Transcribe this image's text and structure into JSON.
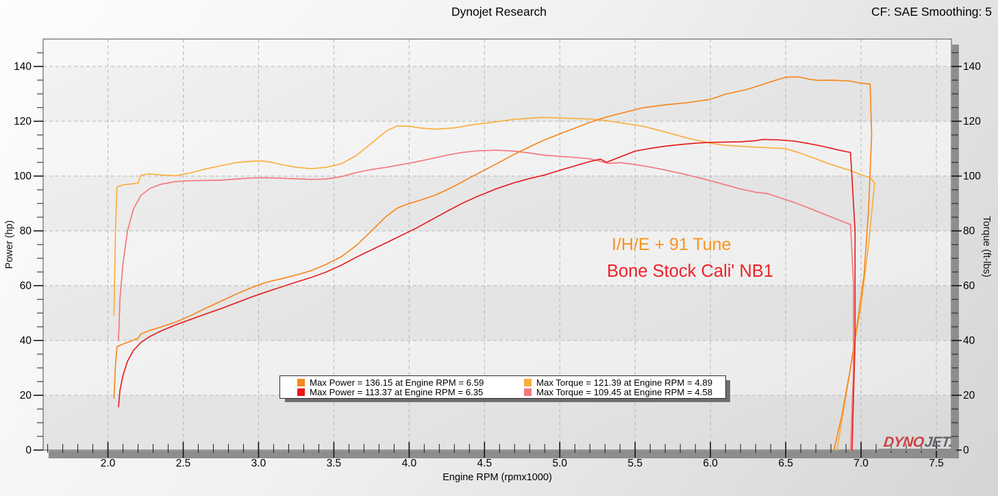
{
  "header": {
    "title": "Dynojet Research",
    "cf_label": "CF: SAE Smoothing: 5"
  },
  "legend": {
    "entries": [
      {
        "label": "Max Power = 136.15 at Engine RPM = 6.59",
        "color": "#F6891F"
      },
      {
        "label": "Max Power = 113.37 at Engine RPM = 6.35",
        "color": "#ED1414"
      },
      {
        "label": "Max Torque = 121.39 at Engine RPM = 4.89",
        "color": "#FBAE3C"
      },
      {
        "label": "Max Torque = 109.45 at Engine RPM = 4.58",
        "color": "#F4787D"
      }
    ]
  },
  "annotations": [
    {
      "text": "I/H/E + 91 Tune",
      "color": "#F7941E"
    },
    {
      "text": "Bone Stock Cali' NB1",
      "color": "#EE2228"
    }
  ],
  "logo": {
    "part1": "DYNO",
    "part2": "JET.",
    "color1": "#CE4046",
    "color2": "#63636B"
  },
  "chart_data": {
    "type": "line",
    "title": "Dynojet Research",
    "xlabel": "Engine RPM (rpmx1000)",
    "ylabel_left": "Power (hp)",
    "ylabel_right": "Torque (ft-lbs)",
    "x_range": [
      1.57,
      7.6
    ],
    "y_range": [
      0,
      150
    ],
    "x_ticks": [
      "2.0",
      "2.5",
      "3.0",
      "3.5",
      "4.0",
      "4.5",
      "5.0",
      "5.5",
      "6.0",
      "6.5",
      "7.0",
      "7.5"
    ],
    "y_ticks": [
      0,
      20,
      40,
      60,
      80,
      100,
      120,
      140
    ],
    "x_minor_step": 0.1,
    "y_minor_step": 5,
    "grid": "dashed",
    "legend_position": "bottom-center",
    "series": [
      {
        "name": "I/H/E + 91 Tune - Torque",
        "axis": "right",
        "unit": "ft-lbs",
        "color": "#FBAE3C",
        "max": {
          "value": 121.39,
          "rpm": 4.89
        },
        "points": [
          [
            2.04,
            49
          ],
          [
            2.05,
            80
          ],
          [
            2.06,
            96
          ],
          [
            2.1,
            96.8
          ],
          [
            2.15,
            97.1
          ],
          [
            2.2,
            97.4
          ],
          [
            2.22,
            100.3
          ],
          [
            2.28,
            100.8
          ],
          [
            2.35,
            100.4
          ],
          [
            2.45,
            100.1
          ],
          [
            2.55,
            101.2
          ],
          [
            2.65,
            102.6
          ],
          [
            2.75,
            103.8
          ],
          [
            2.85,
            104.9
          ],
          [
            2.95,
            105.4
          ],
          [
            3.02,
            105.5
          ],
          [
            3.08,
            105.1
          ],
          [
            3.15,
            104.2
          ],
          [
            3.25,
            103.2
          ],
          [
            3.35,
            102.7
          ],
          [
            3.45,
            103.2
          ],
          [
            3.55,
            104.5
          ],
          [
            3.65,
            107.5
          ],
          [
            3.75,
            112
          ],
          [
            3.85,
            116.5
          ],
          [
            3.92,
            118.3
          ],
          [
            4,
            118.2
          ],
          [
            4.08,
            117.5
          ],
          [
            4.18,
            117.1
          ],
          [
            4.3,
            117.6
          ],
          [
            4.42,
            118.7
          ],
          [
            4.55,
            119.6
          ],
          [
            4.7,
            120.7
          ],
          [
            4.8,
            121.1
          ],
          [
            4.89,
            121.39
          ],
          [
            5,
            121.2
          ],
          [
            5.1,
            121
          ],
          [
            5.2,
            120.8
          ],
          [
            5.3,
            120.3
          ],
          [
            5.42,
            119.3
          ],
          [
            5.55,
            118.2
          ],
          [
            5.7,
            116.1
          ],
          [
            5.85,
            113.8
          ],
          [
            6,
            112
          ],
          [
            6.1,
            111.2
          ],
          [
            6.25,
            110.7
          ],
          [
            6.4,
            110.3
          ],
          [
            6.5,
            110
          ],
          [
            6.59,
            108.5
          ],
          [
            6.7,
            106.3
          ],
          [
            6.78,
            104.6
          ],
          [
            6.85,
            103.4
          ],
          [
            6.92,
            102.2
          ],
          [
            7,
            100.5
          ],
          [
            7.06,
            99.4
          ],
          [
            7.09,
            97.5
          ],
          [
            7.05,
            75
          ],
          [
            7,
            53
          ],
          [
            6.96,
            40
          ],
          [
            6.9,
            20
          ],
          [
            6.84,
            0
          ]
        ]
      },
      {
        "name": "Bone Stock Cali' NB1 - Torque",
        "axis": "right",
        "unit": "ft-lbs",
        "color": "#F4787D",
        "max": {
          "value": 109.45,
          "rpm": 4.58
        },
        "points": [
          [
            2.07,
            40
          ],
          [
            2.08,
            55
          ],
          [
            2.1,
            68
          ],
          [
            2.13,
            80
          ],
          [
            2.17,
            88
          ],
          [
            2.22,
            93
          ],
          [
            2.28,
            95.5
          ],
          [
            2.35,
            97
          ],
          [
            2.45,
            98
          ],
          [
            2.55,
            98.3
          ],
          [
            2.65,
            98.4
          ],
          [
            2.75,
            98.5
          ],
          [
            2.85,
            98.9
          ],
          [
            2.95,
            99.3
          ],
          [
            3.05,
            99.4
          ],
          [
            3.15,
            99.2
          ],
          [
            3.25,
            99
          ],
          [
            3.35,
            98.8
          ],
          [
            3.45,
            98.9
          ],
          [
            3.55,
            99.8
          ],
          [
            3.65,
            101.3
          ],
          [
            3.75,
            102.4
          ],
          [
            3.85,
            103.2
          ],
          [
            3.95,
            104.2
          ],
          [
            4.05,
            105.2
          ],
          [
            4.15,
            106.4
          ],
          [
            4.25,
            107.6
          ],
          [
            4.35,
            108.6
          ],
          [
            4.45,
            109.2
          ],
          [
            4.58,
            109.45
          ],
          [
            4.7,
            109.1
          ],
          [
            4.8,
            108.4
          ],
          [
            4.9,
            107.6
          ],
          [
            5,
            107.2
          ],
          [
            5.1,
            106.8
          ],
          [
            5.2,
            106.3
          ],
          [
            5.27,
            105.4
          ],
          [
            5.32,
            104.6
          ],
          [
            5.4,
            104.9
          ],
          [
            5.5,
            104.2
          ],
          [
            5.6,
            103.3
          ],
          [
            5.7,
            102.2
          ],
          [
            5.8,
            101
          ],
          [
            5.9,
            99.7
          ],
          [
            6,
            98.3
          ],
          [
            6.1,
            96.8
          ],
          [
            6.2,
            95.3
          ],
          [
            6.3,
            94.1
          ],
          [
            6.38,
            93.6
          ],
          [
            6.45,
            92.3
          ],
          [
            6.55,
            90.5
          ],
          [
            6.65,
            88.4
          ],
          [
            6.75,
            86.2
          ],
          [
            6.85,
            84
          ],
          [
            6.93,
            82.3
          ],
          [
            6.95,
            60
          ],
          [
            6.95,
            30
          ],
          [
            6.93,
            0
          ]
        ]
      },
      {
        "name": "I/H/E + 91 Tune - Power",
        "axis": "left",
        "unit": "hp",
        "color": "#F6891F",
        "max": {
          "value": 136.15,
          "rpm": 6.59
        },
        "points": [
          [
            2.04,
            19
          ],
          [
            2.05,
            31
          ],
          [
            2.06,
            37.7
          ],
          [
            2.1,
            38.7
          ],
          [
            2.15,
            39.7
          ],
          [
            2.2,
            40.8
          ],
          [
            2.22,
            42.4
          ],
          [
            2.28,
            43.7
          ],
          [
            2.35,
            44.9
          ],
          [
            2.45,
            46.7
          ],
          [
            2.55,
            49.1
          ],
          [
            2.65,
            51.8
          ],
          [
            2.75,
            54.3
          ],
          [
            2.85,
            56.9
          ],
          [
            2.95,
            59.2
          ],
          [
            3.02,
            60.7
          ],
          [
            3.08,
            61.6
          ],
          [
            3.15,
            62.5
          ],
          [
            3.25,
            63.9
          ],
          [
            3.35,
            65.5
          ],
          [
            3.45,
            67.8
          ],
          [
            3.55,
            70.6
          ],
          [
            3.65,
            74.7
          ],
          [
            3.75,
            80
          ],
          [
            3.85,
            85.4
          ],
          [
            3.92,
            88.3
          ],
          [
            4,
            90
          ],
          [
            4.08,
            91.3
          ],
          [
            4.18,
            93.2
          ],
          [
            4.3,
            96.3
          ],
          [
            4.42,
            99.9
          ],
          [
            4.55,
            103.6
          ],
          [
            4.7,
            108
          ],
          [
            4.8,
            110.7
          ],
          [
            4.89,
            113
          ],
          [
            5,
            115.4
          ],
          [
            5.1,
            117.5
          ],
          [
            5.2,
            119.6
          ],
          [
            5.3,
            121.4
          ],
          [
            5.42,
            123.1
          ],
          [
            5.55,
            124.9
          ],
          [
            5.7,
            126
          ],
          [
            5.85,
            126.8
          ],
          [
            6,
            128
          ],
          [
            6.1,
            129.9
          ],
          [
            6.25,
            131.7
          ],
          [
            6.4,
            134.4
          ],
          [
            6.5,
            136.1
          ],
          [
            6.59,
            136.15
          ],
          [
            6.66,
            135.3
          ],
          [
            6.72,
            134.9
          ],
          [
            6.8,
            135
          ],
          [
            6.92,
            134.7
          ],
          [
            7,
            133.9
          ],
          [
            7.06,
            133.6
          ],
          [
            7.07,
            115
          ],
          [
            7.05,
            88
          ],
          [
            7.02,
            64
          ],
          [
            6.98,
            48
          ],
          [
            6.93,
            30
          ],
          [
            6.87,
            12
          ],
          [
            6.82,
            0
          ]
        ]
      },
      {
        "name": "Bone Stock Cali' NB1 - Power",
        "axis": "left",
        "unit": "hp",
        "color": "#E8201F",
        "max": {
          "value": 113.37,
          "rpm": 6.35
        },
        "points": [
          [
            2.07,
            15.8
          ],
          [
            2.08,
            21.8
          ],
          [
            2.1,
            27.2
          ],
          [
            2.13,
            32.4
          ],
          [
            2.17,
            36.4
          ],
          [
            2.22,
            39.3
          ],
          [
            2.28,
            41.5
          ],
          [
            2.35,
            43.4
          ],
          [
            2.45,
            45.7
          ],
          [
            2.55,
            47.7
          ],
          [
            2.65,
            49.7
          ],
          [
            2.75,
            51.6
          ],
          [
            2.85,
            53.7
          ],
          [
            2.95,
            55.8
          ],
          [
            3.05,
            57.7
          ],
          [
            3.15,
            59.5
          ],
          [
            3.25,
            61.3
          ],
          [
            3.35,
            63
          ],
          [
            3.45,
            65
          ],
          [
            3.55,
            67.5
          ],
          [
            3.65,
            70.4
          ],
          [
            3.75,
            73.1
          ],
          [
            3.85,
            75.7
          ],
          [
            3.95,
            78.4
          ],
          [
            4.05,
            81.1
          ],
          [
            4.15,
            84.1
          ],
          [
            4.25,
            87.1
          ],
          [
            4.35,
            90
          ],
          [
            4.45,
            92.5
          ],
          [
            4.58,
            95.4
          ],
          [
            4.7,
            97.6
          ],
          [
            4.8,
            99.1
          ],
          [
            4.9,
            100.4
          ],
          [
            5,
            102.1
          ],
          [
            5.1,
            103.7
          ],
          [
            5.2,
            105.3
          ],
          [
            5.27,
            106.2
          ],
          [
            5.31,
            105
          ],
          [
            5.36,
            106.1
          ],
          [
            5.5,
            109.1
          ],
          [
            5.6,
            110.1
          ],
          [
            5.7,
            110.9
          ],
          [
            5.8,
            111.5
          ],
          [
            5.9,
            112
          ],
          [
            6,
            112.3
          ],
          [
            6.1,
            112.4
          ],
          [
            6.2,
            112.5
          ],
          [
            6.3,
            112.9
          ],
          [
            6.35,
            113.37
          ],
          [
            6.45,
            113.2
          ],
          [
            6.55,
            112.8
          ],
          [
            6.65,
            111.9
          ],
          [
            6.75,
            110.8
          ],
          [
            6.85,
            109.5
          ],
          [
            6.93,
            108.6
          ],
          [
            6.96,
            80
          ],
          [
            6.96,
            40
          ],
          [
            6.94,
            0
          ]
        ]
      }
    ]
  }
}
